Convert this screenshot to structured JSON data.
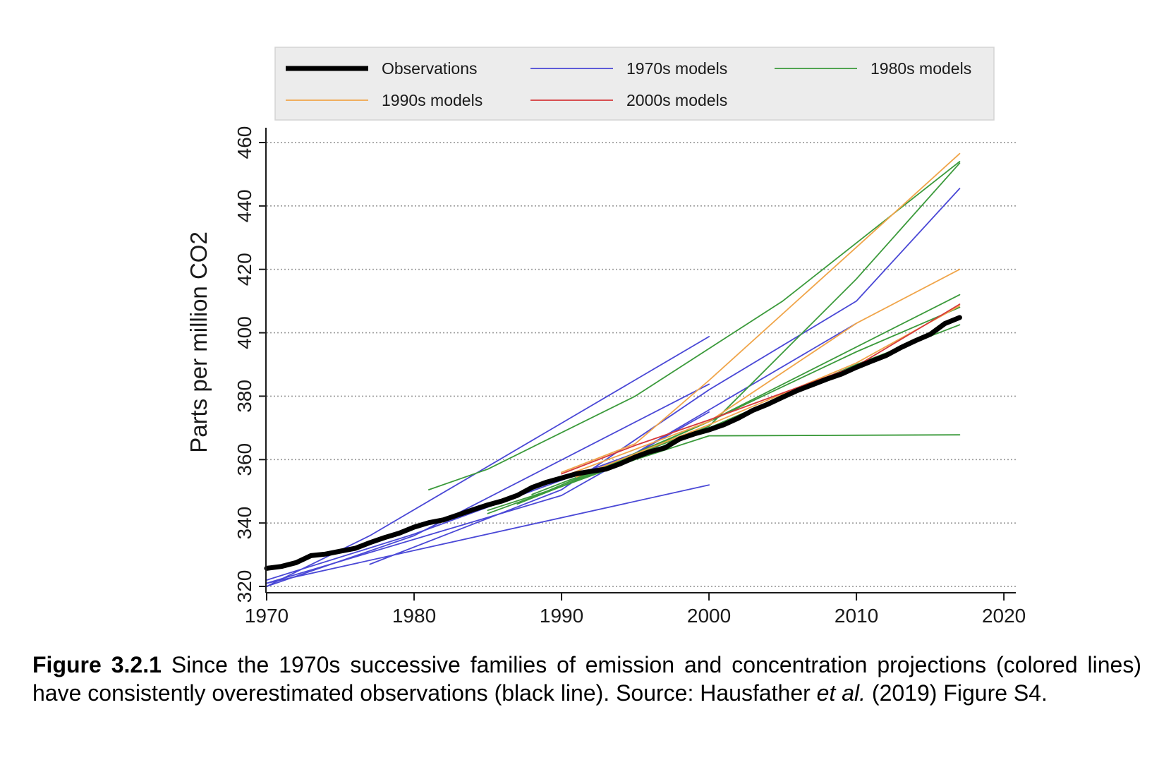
{
  "chart_data": {
    "type": "line",
    "title": "",
    "xlabel": "",
    "ylabel": "Parts per million CO2",
    "xlim": [
      1970,
      2021
    ],
    "ylim": [
      318,
      462
    ],
    "xticks": [
      1970,
      1980,
      1990,
      2000,
      2010,
      2020
    ],
    "yticks": [
      320,
      340,
      360,
      380,
      400,
      420,
      440,
      460
    ],
    "grid": "horizontal dotted",
    "legend_position": "top",
    "legend": [
      {
        "name": "Observations",
        "color": "#000000"
      },
      {
        "name": "1970s models",
        "color": "#4a48d6"
      },
      {
        "name": "1980s models",
        "color": "#3b9a3b"
      },
      {
        "name": "1990s models",
        "color": "#f0a54a"
      },
      {
        "name": "2000s models",
        "color": "#d6393b"
      }
    ],
    "series": [
      {
        "name": "Observations",
        "family": "observations",
        "color": "#000000",
        "width": 7,
        "points": [
          [
            1970,
            325.7
          ],
          [
            1971,
            326.3
          ],
          [
            1972,
            327.5
          ],
          [
            1973,
            329.7
          ],
          [
            1974,
            330.2
          ],
          [
            1975,
            331.1
          ],
          [
            1976,
            332.0
          ],
          [
            1977,
            333.8
          ],
          [
            1978,
            335.4
          ],
          [
            1979,
            336.8
          ],
          [
            1980,
            338.7
          ],
          [
            1981,
            340.1
          ],
          [
            1982,
            341.0
          ],
          [
            1983,
            342.6
          ],
          [
            1984,
            344.2
          ],
          [
            1985,
            345.7
          ],
          [
            1986,
            347.0
          ],
          [
            1987,
            348.7
          ],
          [
            1988,
            351.2
          ],
          [
            1989,
            352.9
          ],
          [
            1990,
            354.2
          ],
          [
            1991,
            355.5
          ],
          [
            1992,
            356.3
          ],
          [
            1993,
            357.0
          ],
          [
            1994,
            358.7
          ],
          [
            1995,
            360.8
          ],
          [
            1996,
            362.5
          ],
          [
            1997,
            363.7
          ],
          [
            1998,
            366.5
          ],
          [
            1999,
            368.1
          ],
          [
            2000,
            369.4
          ],
          [
            2001,
            371.0
          ],
          [
            2002,
            373.1
          ],
          [
            2003,
            375.6
          ],
          [
            2004,
            377.5
          ],
          [
            2005,
            379.7
          ],
          [
            2006,
            381.8
          ],
          [
            2007,
            383.6
          ],
          [
            2008,
            385.4
          ],
          [
            2009,
            387.0
          ],
          [
            2010,
            389.1
          ],
          [
            2011,
            391.0
          ],
          [
            2012,
            392.8
          ],
          [
            2013,
            395.3
          ],
          [
            2014,
            397.5
          ],
          [
            2015,
            399.5
          ],
          [
            2016,
            402.9
          ],
          [
            2017,
            404.8
          ]
        ]
      },
      {
        "family": "1970s",
        "color": "#4a48d6",
        "points": [
          [
            1970,
            320
          ],
          [
            1977,
            336
          ],
          [
            2000,
            398.8
          ]
        ]
      },
      {
        "family": "1970s",
        "color": "#4a48d6",
        "points": [
          [
            1970,
            320
          ],
          [
            1980,
            336
          ],
          [
            2000,
            383.8
          ]
        ]
      },
      {
        "family": "1970s",
        "color": "#4a48d6",
        "points": [
          [
            1970,
            321
          ],
          [
            1990,
            348.7
          ],
          [
            2000,
            375
          ]
        ]
      },
      {
        "family": "1970s",
        "color": "#4a48d6",
        "points": [
          [
            1970,
            321
          ],
          [
            2000,
            352
          ]
        ]
      },
      {
        "family": "1970s",
        "color": "#4a48d6",
        "points": [
          [
            1977,
            327
          ],
          [
            1990,
            350.5
          ],
          [
            2000,
            382
          ],
          [
            2010,
            410
          ],
          [
            2017,
            445.5
          ]
        ]
      },
      {
        "family": "1970s",
        "color": "#4a48d6",
        "points": [
          [
            1970,
            322
          ],
          [
            1980,
            336.5
          ],
          [
            1995,
            362
          ],
          [
            2010,
            403
          ]
        ]
      },
      {
        "family": "1980s",
        "color": "#3b9a3b",
        "points": [
          [
            1981,
            350.5
          ],
          [
            1985,
            357
          ],
          [
            1995,
            380
          ],
          [
            2005,
            410
          ],
          [
            2017,
            454
          ]
        ]
      },
      {
        "family": "1980s",
        "color": "#3b9a3b",
        "points": [
          [
            1985,
            344
          ],
          [
            1990,
            351.5
          ],
          [
            2000,
            372
          ],
          [
            2017,
            412
          ]
        ]
      },
      {
        "family": "1980s",
        "color": "#3b9a3b",
        "points": [
          [
            1985,
            343
          ],
          [
            1995,
            360
          ],
          [
            2000,
            367.5
          ],
          [
            2017,
            367.8
          ]
        ]
      },
      {
        "family": "1980s",
        "color": "#3b9a3b",
        "points": [
          [
            1987,
            346
          ],
          [
            2000,
            370
          ],
          [
            2010,
            390
          ],
          [
            2017,
            402.5
          ]
        ]
      },
      {
        "family": "1980s",
        "color": "#3b9a3b",
        "points": [
          [
            1988,
            349
          ],
          [
            2000,
            370.5
          ],
          [
            2010,
            417
          ],
          [
            2017,
            453.5
          ]
        ]
      },
      {
        "family": "1980s",
        "color": "#3b9a3b",
        "points": [
          [
            1988,
            348
          ],
          [
            2000,
            372
          ],
          [
            2010,
            394
          ],
          [
            2017,
            408
          ]
        ]
      },
      {
        "family": "1990s",
        "color": "#f0a54a",
        "points": [
          [
            1990,
            356
          ],
          [
            1995,
            365
          ],
          [
            2000,
            385
          ],
          [
            2010,
            427
          ],
          [
            2017,
            456.5
          ]
        ]
      },
      {
        "family": "1990s",
        "color": "#f0a54a",
        "points": [
          [
            1990,
            354.5
          ],
          [
            2000,
            372
          ],
          [
            2010,
            403
          ],
          [
            2017,
            420
          ]
        ]
      },
      {
        "family": "1990s",
        "color": "#f0a54a",
        "points": [
          [
            1991,
            354.5
          ],
          [
            2000,
            371
          ],
          [
            2010,
            390.5
          ],
          [
            2017,
            408.5
          ]
        ]
      },
      {
        "family": "2000s",
        "color": "#d6393b",
        "points": [
          [
            1990,
            355.5
          ],
          [
            1995,
            364.5
          ],
          [
            2000,
            372.5
          ],
          [
            2010,
            389.5
          ],
          [
            2017,
            409
          ]
        ]
      }
    ]
  },
  "caption": {
    "label": "Figure 3.2.1",
    "text1": " Since the 1970s successive families of emission and concentration projections (colored lines) have consistently overestimated observations (black line). Source: Hausfather ",
    "italic": "et al.",
    "text2": " (2019) Figure S4."
  }
}
